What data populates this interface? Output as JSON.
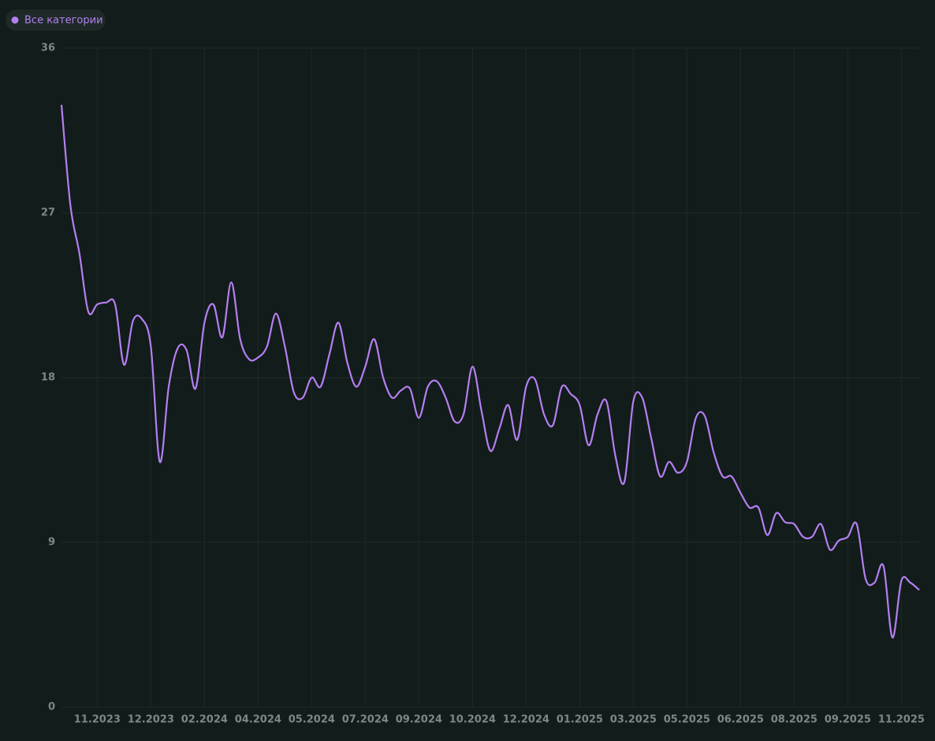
{
  "chart_data": {
    "type": "line",
    "categories": [
      null,
      null,
      null,
      null,
      "11.2023",
      null,
      null,
      null,
      null,
      null,
      "12.2023",
      null,
      null,
      null,
      null,
      null,
      "02.2024",
      null,
      null,
      null,
      null,
      null,
      "04.2024",
      null,
      null,
      null,
      null,
      null,
      "05.2024",
      null,
      null,
      null,
      null,
      null,
      "07.2024",
      null,
      null,
      null,
      null,
      null,
      "09.2024",
      null,
      null,
      null,
      null,
      null,
      "10.2024",
      null,
      null,
      null,
      null,
      null,
      "12.2024",
      null,
      null,
      null,
      null,
      null,
      "01.2025",
      null,
      null,
      null,
      null,
      null,
      "03.2025",
      null,
      null,
      null,
      null,
      null,
      "05.2025",
      null,
      null,
      null,
      null,
      null,
      "06.2025",
      null,
      null,
      null,
      null,
      null,
      "08.2025",
      null,
      null,
      null,
      null,
      null,
      "09.2025",
      null,
      null,
      null,
      null,
      null,
      "11.2025",
      null,
      null
    ],
    "series": [
      {
        "name": "Все категории",
        "color": "#b57ff0",
        "values": [
          32.9,
          27.4,
          24.8,
          21.6,
          22.0,
          22.1,
          22.0,
          18.7,
          21.1,
          21.2,
          19.7,
          13.4,
          17.5,
          19.6,
          19.5,
          17.4,
          21.0,
          22.0,
          20.2,
          23.2,
          20.1,
          19.0,
          19.1,
          19.7,
          21.5,
          19.7,
          17.2,
          16.9,
          18.0,
          17.5,
          19.3,
          21.0,
          18.8,
          17.5,
          18.6,
          20.1,
          18.0,
          16.9,
          17.3,
          17.4,
          15.8,
          17.5,
          17.8,
          16.9,
          15.6,
          16.0,
          18.6,
          16.2,
          14.0,
          15.2,
          16.5,
          14.6,
          17.5,
          17.9,
          16.0,
          15.4,
          17.5,
          17.1,
          16.5,
          14.3,
          16.0,
          16.7,
          13.7,
          12.3,
          16.7,
          16.9,
          14.7,
          12.6,
          13.4,
          12.8,
          13.4,
          15.8,
          15.9,
          13.9,
          12.6,
          12.6,
          11.7,
          10.9,
          10.9,
          9.4,
          10.6,
          10.1,
          10.0,
          9.3,
          9.3,
          10.0,
          8.6,
          9.1,
          9.3,
          10.0,
          7.0,
          6.8,
          7.7,
          3.8,
          6.9,
          6.8,
          6.4
        ]
      }
    ],
    "ylim": [
      0,
      36
    ],
    "yticks": [
      0,
      9,
      18,
      27,
      36
    ],
    "grid": true
  }
}
